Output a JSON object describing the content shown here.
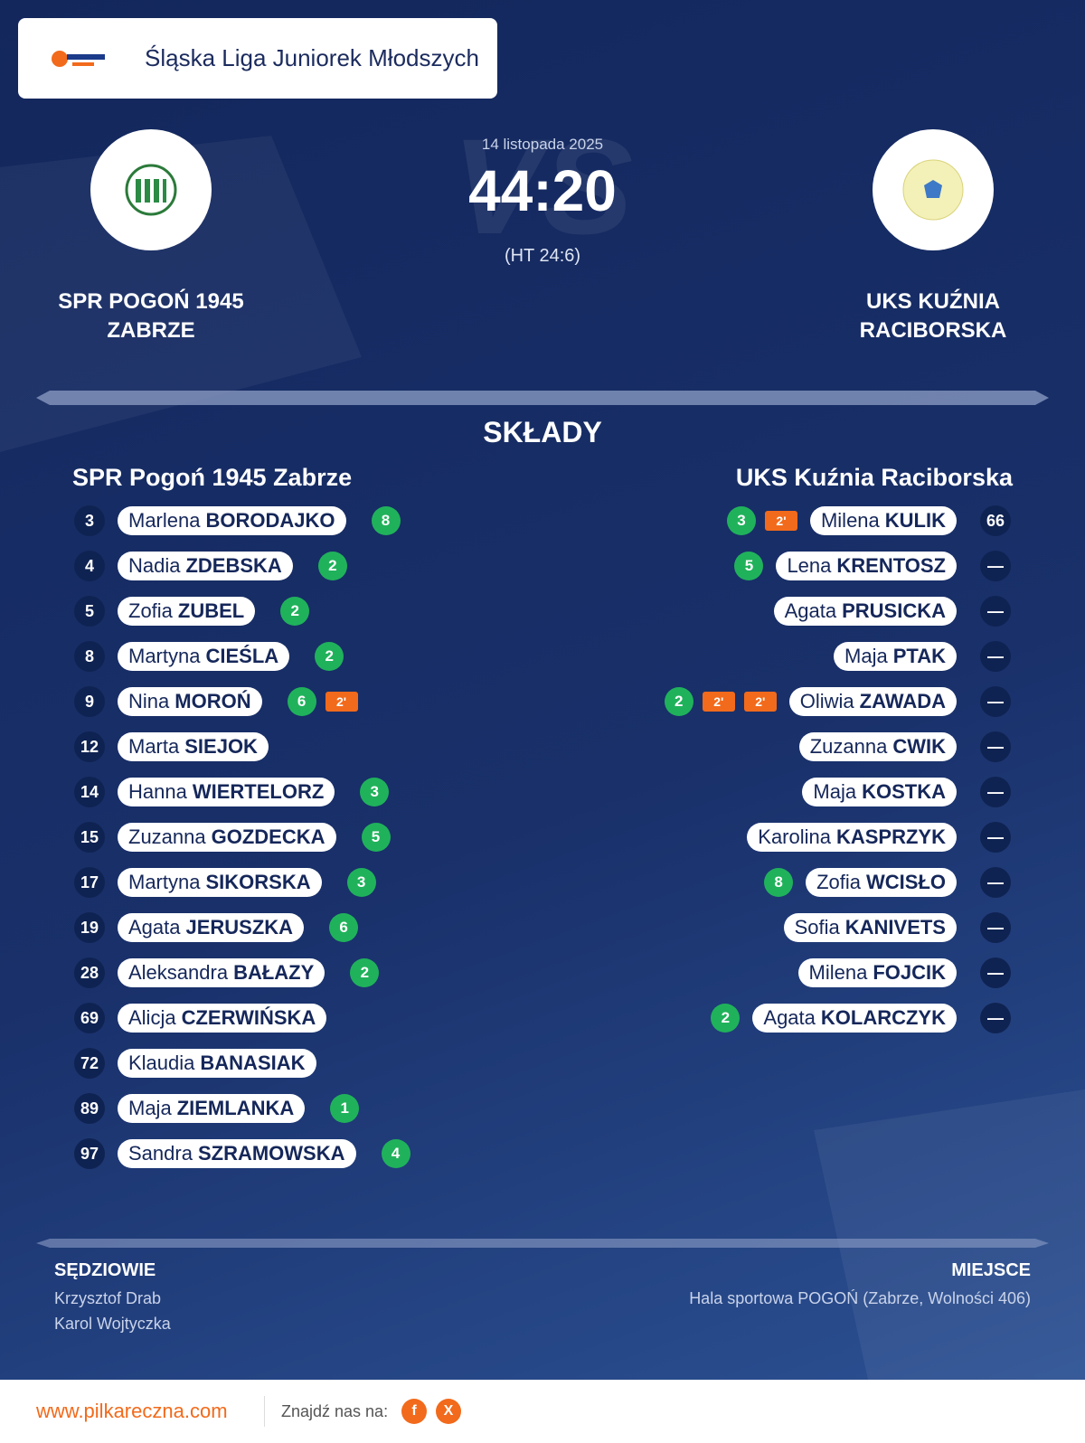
{
  "header": {
    "title": "Śląska Liga Juniorek Młodszych"
  },
  "match": {
    "date": "14 listopada 2025",
    "score": "44:20",
    "halftime": "(HT 24:6)",
    "watermark": "VS",
    "home": "SPR POGOŃ 1945 ZABRZE",
    "away": "UKS KUŹNIA RACIBORSKA"
  },
  "lineups": {
    "title": "SKŁADY",
    "home": {
      "name": "SPR Pogoń 1945 Zabrze",
      "players": [
        {
          "number": "3",
          "first": "Marlena",
          "last": "BORODAJKO",
          "goals": "8",
          "penalties": []
        },
        {
          "number": "4",
          "first": "Nadia",
          "last": "ZDEBSKA",
          "goals": "2",
          "penalties": []
        },
        {
          "number": "5",
          "first": "Zofia",
          "last": "ZUBEL",
          "goals": "2",
          "penalties": []
        },
        {
          "number": "8",
          "first": "Martyna",
          "last": "CIEŚLA",
          "goals": "2",
          "penalties": []
        },
        {
          "number": "9",
          "first": "Nina",
          "last": "MOROŃ",
          "goals": "6",
          "penalties": [
            "2'"
          ]
        },
        {
          "number": "12",
          "first": "Marta",
          "last": "SIEJOK",
          "goals": null,
          "penalties": []
        },
        {
          "number": "14",
          "first": "Hanna",
          "last": "WIERTELORZ",
          "goals": "3",
          "penalties": []
        },
        {
          "number": "15",
          "first": "Zuzanna",
          "last": "GOZDECKA",
          "goals": "5",
          "penalties": []
        },
        {
          "number": "17",
          "first": "Martyna",
          "last": "SIKORSKA",
          "goals": "3",
          "penalties": []
        },
        {
          "number": "19",
          "first": "Agata",
          "last": "JERUSZKA",
          "goals": "6",
          "penalties": []
        },
        {
          "number": "28",
          "first": "Aleksandra",
          "last": "BAŁAZY",
          "goals": "2",
          "penalties": []
        },
        {
          "number": "69",
          "first": "Alicja",
          "last": "CZERWIŃSKA",
          "goals": null,
          "penalties": []
        },
        {
          "number": "72",
          "first": "Klaudia",
          "last": "BANASIAK",
          "goals": null,
          "penalties": []
        },
        {
          "number": "89",
          "first": "Maja",
          "last": "ZIEMLANKA",
          "goals": "1",
          "penalties": []
        },
        {
          "number": "97",
          "first": "Sandra",
          "last": "SZRAMOWSKA",
          "goals": "4",
          "penalties": []
        }
      ]
    },
    "away": {
      "name": "UKS Kuźnia Raciborska",
      "players": [
        {
          "number": "66",
          "first": "Milena",
          "last": "KULIK",
          "goals": "3",
          "penalties": [
            "2'"
          ]
        },
        {
          "number": "—",
          "first": "Lena",
          "last": "KRENTOSZ",
          "goals": "5",
          "penalties": []
        },
        {
          "number": "—",
          "first": "Agata",
          "last": "PRUSICKA",
          "goals": null,
          "penalties": []
        },
        {
          "number": "—",
          "first": "Maja",
          "last": "PTAK",
          "goals": null,
          "penalties": []
        },
        {
          "number": "—",
          "first": "Oliwia",
          "last": "ZAWADA",
          "goals": "2",
          "penalties": [
            "2'",
            "2'"
          ]
        },
        {
          "number": "—",
          "first": "Zuzanna",
          "last": "CWIK",
          "goals": null,
          "penalties": []
        },
        {
          "number": "—",
          "first": "Maja",
          "last": "KOSTKA",
          "goals": null,
          "penalties": []
        },
        {
          "number": "—",
          "first": "Karolina",
          "last": "KASPRZYK",
          "goals": null,
          "penalties": []
        },
        {
          "number": "—",
          "first": "Zofia",
          "last": "WCISŁO",
          "goals": "8",
          "penalties": []
        },
        {
          "number": "—",
          "first": "Sofia",
          "last": "KANIVETS",
          "goals": null,
          "penalties": []
        },
        {
          "number": "—",
          "first": "Milena",
          "last": "FOJCIK",
          "goals": null,
          "penalties": []
        },
        {
          "number": "—",
          "first": "Agata",
          "last": "KOLARCZYK",
          "goals": "2",
          "penalties": []
        }
      ]
    }
  },
  "officials": {
    "referees_label": "SĘDZIOWIE",
    "referees": [
      "Krzysztof Drab",
      "Karol Wojtyczka"
    ],
    "venue_label": "MIEJSCE",
    "venue": "Hala sportowa POGOŃ (Zabrze, Wolności 406)"
  },
  "footer": {
    "website": "www.pilkareczna.com",
    "find_us": "Znajdź nas na:",
    "facebook": "f",
    "x": "X"
  }
}
